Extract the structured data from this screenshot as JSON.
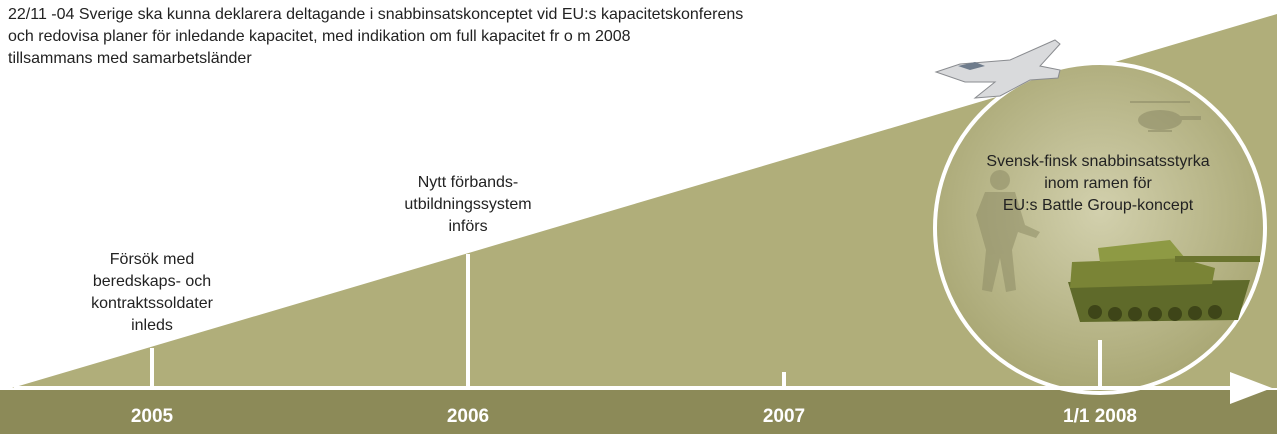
{
  "header": {
    "lines": [
      "22/11 -04 Sverige ska kunna deklarera deltagande i snabbinsatskonceptet vid EU:s kapacitetskonferens",
      "och redovisa planer för inledande kapacitet, med indikation om full kapacitet fr o m 2008",
      "tillsammans med samarbetsländer"
    ]
  },
  "timeline": [
    {
      "year": "2005",
      "label": [
        "Försök med",
        "beredskaps- och",
        "kontraktssoldater",
        "inleds"
      ]
    },
    {
      "year": "2006",
      "label": [
        "Nytt förbands-",
        "utbildningssystem",
        "införs"
      ]
    },
    {
      "year": "2007",
      "label": []
    },
    {
      "year": "1/1 2008",
      "label": []
    }
  ],
  "circle": {
    "lines": [
      "Svensk-finsk snabbinsatsstyrka",
      "inom ramen för",
      "EU:s Battle Group-koncept"
    ]
  }
}
